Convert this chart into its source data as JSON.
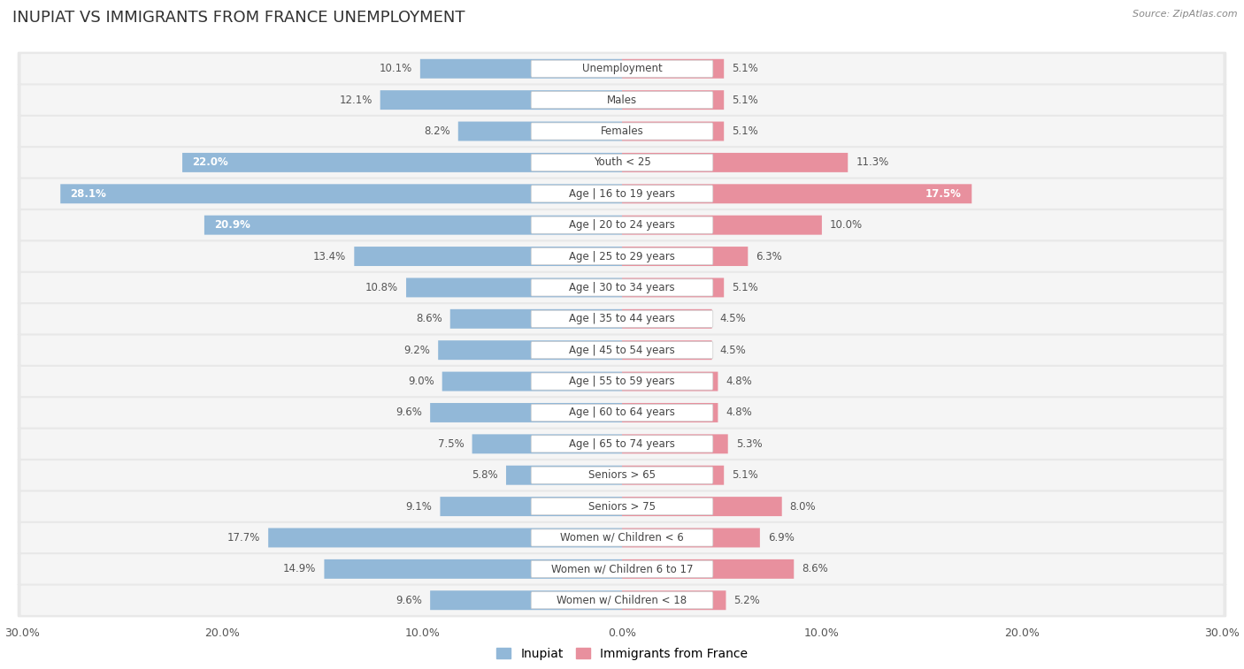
{
  "title": "INUPIAT VS IMMIGRANTS FROM FRANCE UNEMPLOYMENT",
  "source": "Source: ZipAtlas.com",
  "categories": [
    "Unemployment",
    "Males",
    "Females",
    "Youth < 25",
    "Age | 16 to 19 years",
    "Age | 20 to 24 years",
    "Age | 25 to 29 years",
    "Age | 30 to 34 years",
    "Age | 35 to 44 years",
    "Age | 45 to 54 years",
    "Age | 55 to 59 years",
    "Age | 60 to 64 years",
    "Age | 65 to 74 years",
    "Seniors > 65",
    "Seniors > 75",
    "Women w/ Children < 6",
    "Women w/ Children 6 to 17",
    "Women w/ Children < 18"
  ],
  "inupiat_values": [
    10.1,
    12.1,
    8.2,
    22.0,
    28.1,
    20.9,
    13.4,
    10.8,
    8.6,
    9.2,
    9.0,
    9.6,
    7.5,
    5.8,
    9.1,
    17.7,
    14.9,
    9.6
  ],
  "france_values": [
    5.1,
    5.1,
    5.1,
    11.3,
    17.5,
    10.0,
    6.3,
    5.1,
    4.5,
    4.5,
    4.8,
    4.8,
    5.3,
    5.1,
    8.0,
    6.9,
    8.6,
    5.2
  ],
  "inupiat_color": "#92b8d8",
  "france_color": "#e8909e",
  "row_bg_color": "#e8e8e8",
  "row_inner_color": "#f5f5f5",
  "fig_bg_color": "#ffffff",
  "axis_limit": 30.0,
  "title_fontsize": 13,
  "label_fontsize": 8.5,
  "value_fontsize": 8.5,
  "tick_fontsize": 9,
  "legend_fontsize": 10
}
